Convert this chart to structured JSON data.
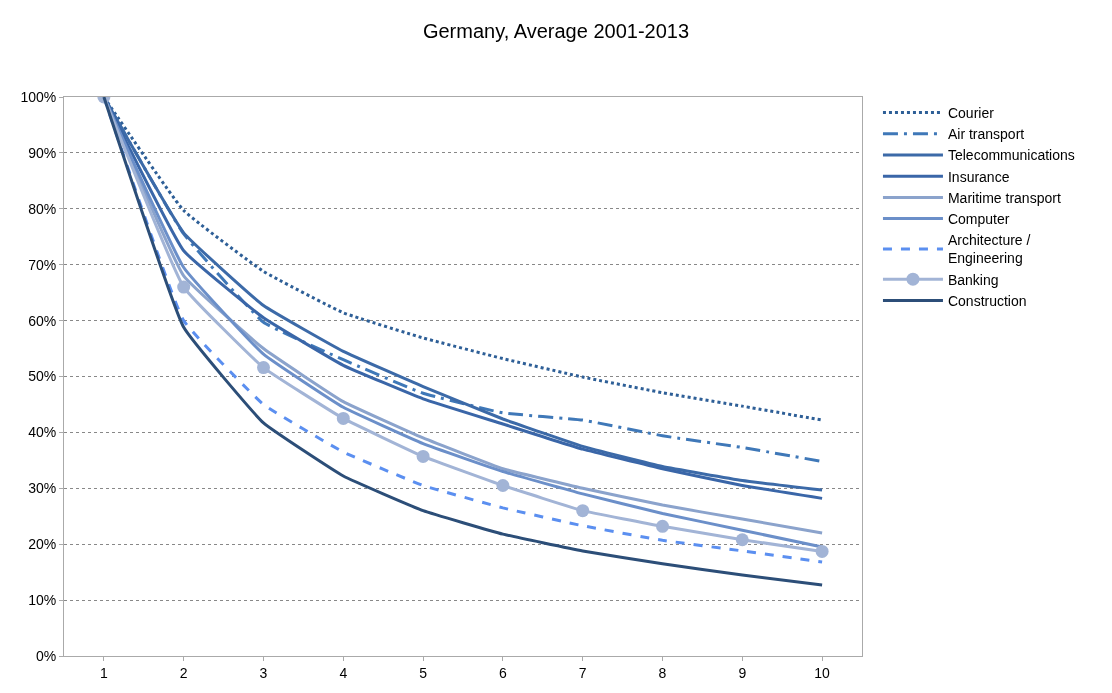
{
  "chart_data": {
    "type": "line",
    "title": "Germany, Average 2001-2013",
    "x": [
      1,
      2,
      3,
      4,
      5,
      6,
      7,
      8,
      9,
      10
    ],
    "xlim": [
      0.5,
      10.5
    ],
    "xticks": [
      1,
      2,
      3,
      4,
      5,
      6,
      7,
      8,
      9,
      10
    ],
    "ylim": [
      0,
      100
    ],
    "yticks": [
      {
        "value": 0,
        "label": "0%"
      },
      {
        "value": 10,
        "label": "10%"
      },
      {
        "value": 20,
        "label": "20%"
      },
      {
        "value": 30,
        "label": "30%"
      },
      {
        "value": 40,
        "label": "40%"
      },
      {
        "value": 50,
        "label": "50%"
      },
      {
        "value": 60,
        "label": "60%"
      },
      {
        "value": 70,
        "label": "70%"
      },
      {
        "value": 80,
        "label": "80%"
      },
      {
        "value": 90,
        "label": "90%"
      },
      {
        "value": 100,
        "label": "100%"
      }
    ],
    "grid": "y",
    "legend": "right",
    "marker": "none",
    "series": [
      {
        "name": "Courier",
        "color": "#2e5f97",
        "line_style": "dotted",
        "values": [
          100,
          79.7,
          68.8,
          61.4,
          56.9,
          53.2,
          49.9,
          47.1,
          44.7,
          42.2
        ]
      },
      {
        "name": "Air transport",
        "color": "#3f78b8",
        "line_style": "dashdot",
        "values": [
          100,
          75.5,
          59.7,
          53,
          47,
          43.5,
          42.2,
          39.4,
          37.3,
          34.8
        ]
      },
      {
        "name": "Telecommunications",
        "color": "#3c6aa8",
        "line_style": "solid",
        "values": [
          100,
          75.7,
          62.7,
          54.5,
          48.2,
          42.4,
          37.5,
          33.9,
          31.4,
          29.7
        ]
      },
      {
        "name": "Insurance",
        "color": "#3a66a8",
        "line_style": "solid",
        "values": [
          100,
          72.5,
          60.5,
          52,
          46,
          41.5,
          37,
          33.5,
          30.5,
          28.2
        ]
      },
      {
        "name": "Maritime transport",
        "color": "#8ba3cc",
        "line_style": "solid",
        "values": [
          100,
          68,
          55,
          45.5,
          39,
          33.5,
          30,
          27,
          24.5,
          22
        ]
      },
      {
        "name": "Computer",
        "color": "#6b8fc9",
        "line_style": "solid",
        "values": [
          100,
          69.5,
          54,
          44.5,
          38,
          33,
          29,
          25.5,
          22.5,
          19.5
        ]
      },
      {
        "name": "Architecture / Engineering",
        "color": "#5b8ff0",
        "line_style": "dashed",
        "values": [
          100,
          60,
          45,
          36.5,
          30.5,
          26.5,
          23.3,
          20.7,
          18.8,
          16.8
        ]
      },
      {
        "name": "Banking",
        "color": "#a2b4d6",
        "line_style": "solid",
        "marker": "circle",
        "values": [
          100,
          66,
          51.6,
          42.5,
          35.7,
          30.5,
          26,
          23.2,
          20.8,
          18.7
        ]
      },
      {
        "name": "Construction",
        "color": "#2c4e78",
        "line_style": "solid",
        "values": [
          100,
          58.8,
          41.7,
          32.2,
          26,
          21.8,
          18.8,
          16.5,
          14.5,
          12.7
        ]
      }
    ]
  }
}
